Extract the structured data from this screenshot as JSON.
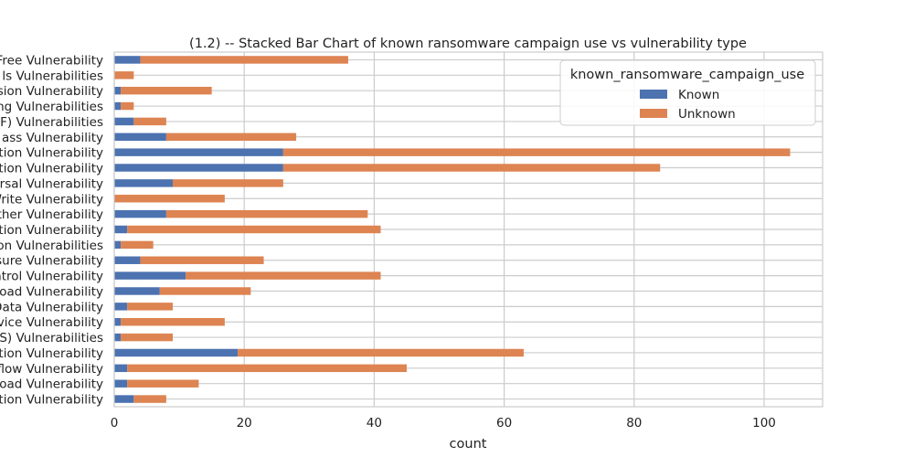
{
  "chart_data": {
    "type": "bar",
    "orientation": "horizontal",
    "stacked": true,
    "title": "(1.2) -- Stacked Bar Chart of  known ransomware campaign use vs vulnerability type",
    "xlabel": "count",
    "ylabel": "",
    "xlim": [
      0,
      109
    ],
    "xticks": [
      0,
      20,
      40,
      60,
      80,
      100
    ],
    "grid": true,
    "legend": {
      "title": "known_ransomware_campaign_use",
      "placement": "top-right"
    },
    "categories": [
      "Free Vulnerability",
      "ls Vulnerabilities",
      "sion Vulnerability",
      "ng Vulnerabilities",
      "F) Vulnerabilities",
      "ass Vulnerability",
      "tion Vulnerability",
      "tion Vulnerability",
      "rsal Vulnerability",
      "Write Vulnerability",
      "ther Vulnerability",
      "tion Vulnerability",
      "on Vulnerabilities",
      "sure Vulnerability",
      "ntrol Vulnerability",
      "oad Vulnerability",
      "Data Vulnerability",
      "vice Vulnerability",
      "S) Vulnerabilities",
      "tion Vulnerability",
      "flow Vulnerability",
      "oad Vulnerability",
      "tion Vulnerability"
    ],
    "series": [
      {
        "name": "Known",
        "color": "#4c72b0",
        "values": [
          4,
          0,
          1,
          1,
          3,
          8,
          26,
          26,
          9,
          0,
          8,
          2,
          1,
          4,
          11,
          7,
          2,
          1,
          1,
          19,
          2,
          2,
          3
        ]
      },
      {
        "name": "Unknown",
        "color": "#dd8452",
        "values": [
          32,
          3,
          14,
          2,
          5,
          20,
          78,
          58,
          17,
          17,
          31,
          39,
          5,
          19,
          30,
          14,
          7,
          16,
          8,
          44,
          43,
          11,
          5
        ]
      }
    ]
  }
}
